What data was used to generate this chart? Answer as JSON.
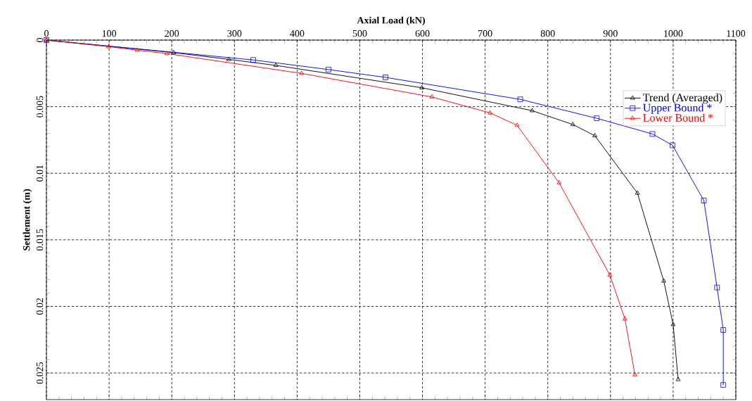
{
  "chart_data": {
    "type": "line",
    "xlabel": "Axial Load (kN)",
    "ylabel": "Settlement (m)",
    "xlim": [
      0,
      1100
    ],
    "ylim": [
      0.027,
      0
    ],
    "xticks": [
      0,
      100,
      200,
      300,
      400,
      500,
      600,
      700,
      800,
      900,
      1000,
      1100
    ],
    "yticks": [
      0,
      0.005,
      0.01,
      0.015,
      0.02,
      0.025
    ],
    "grid": true,
    "legend": "top right",
    "line_style": "solid",
    "series": [
      {
        "name": "Trend (Averaged)",
        "color": "#000000",
        "marker": "triangle",
        "x": [
          0,
          203,
          291,
          366,
          599,
          775,
          840,
          875,
          943,
          985,
          1000,
          1008
        ],
        "values": [
          0,
          0.00094,
          0.00145,
          0.0019,
          0.00358,
          0.0053,
          0.00634,
          0.00718,
          0.01149,
          0.01809,
          0.02136,
          0.02549
        ]
      },
      {
        "name": "Upper Bound *",
        "color": "#0000ff",
        "marker": "square",
        "x": [
          0,
          330,
          450,
          541,
          756,
          878,
          967,
          999,
          1049,
          1070,
          1080,
          1080
        ],
        "values": [
          0,
          0.00149,
          0.00221,
          0.0028,
          0.00445,
          0.00587,
          0.00705,
          0.0079,
          0.01205,
          0.01858,
          0.02177,
          0.0259
        ]
      },
      {
        "name": "Lower Bound *",
        "color": "#ff0000",
        "marker": "triangle",
        "x": [
          0,
          99,
          145,
          192,
          407,
          615,
          708,
          751,
          818,
          899,
          923,
          939
        ],
        "values": [
          0,
          0.00049,
          0.00076,
          0.00101,
          0.0025,
          0.00427,
          0.00547,
          0.0064,
          0.01072,
          0.01764,
          0.02094,
          0.02513
        ]
      }
    ]
  }
}
